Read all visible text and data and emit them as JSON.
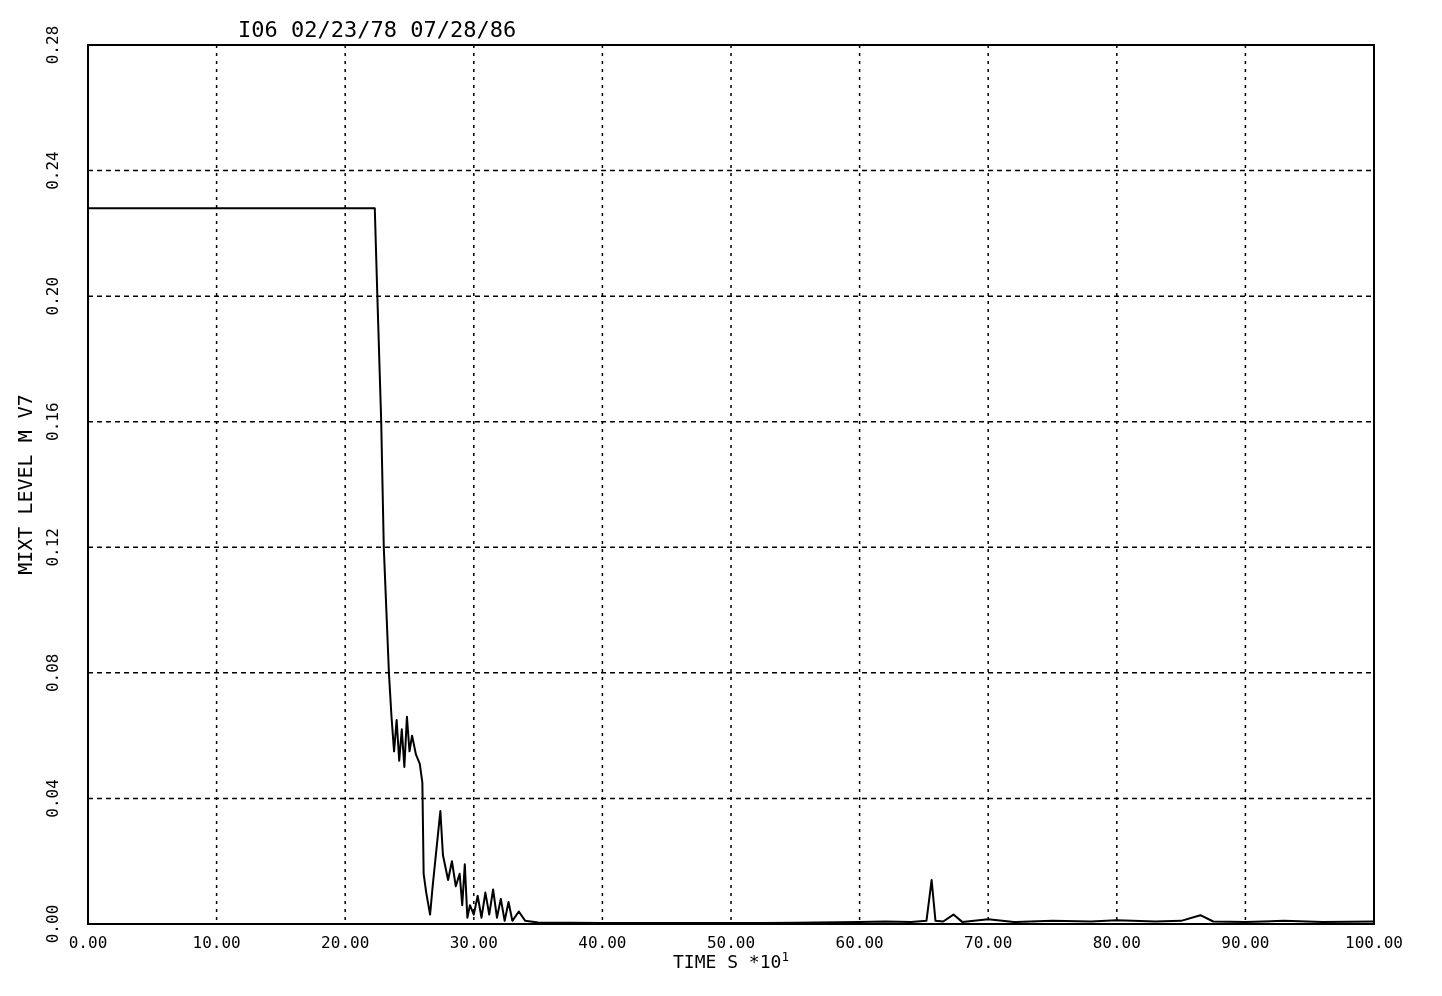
{
  "chart_data": {
    "type": "line",
    "title": "I06 02/23/78 07/28/86",
    "xlabel": "TIME  S  *10$^{1}$",
    "ylabel": "MIXT LEVEL  M  V7",
    "xlim": [
      0,
      100
    ],
    "ylim": [
      0,
      0.28
    ],
    "xticks": [
      {
        "value": 0,
        "label": "0.00"
      },
      {
        "value": 10,
        "label": "10.00"
      },
      {
        "value": 20,
        "label": "20.00"
      },
      {
        "value": 30,
        "label": "30.00"
      },
      {
        "value": 40,
        "label": "40.00"
      },
      {
        "value": 50,
        "label": "50.00"
      },
      {
        "value": 60,
        "label": "60.00"
      },
      {
        "value": 70,
        "label": "70.00"
      },
      {
        "value": 80,
        "label": "80.00"
      },
      {
        "value": 90,
        "label": "90.00"
      },
      {
        "value": 100,
        "label": "100.00"
      }
    ],
    "yticks": [
      {
        "value": 0,
        "label": "0.00"
      },
      {
        "value": 0.04,
        "label": "0.04"
      },
      {
        "value": 0.08,
        "label": "0.08"
      },
      {
        "value": 0.12,
        "label": "0.12"
      },
      {
        "value": 0.16,
        "label": "0.16"
      },
      {
        "value": 0.2,
        "label": "0.20"
      },
      {
        "value": 0.24,
        "label": "0.24"
      },
      {
        "value": 0.28,
        "label": "0.28"
      }
    ],
    "grid": true,
    "line_style": "solid",
    "marker": "none",
    "series": [
      {
        "color": "#000000",
        "x": [
          0,
          22.3,
          22.5,
          22.8,
          23.0,
          23.2,
          23.4,
          23.6,
          23.8,
          24.0,
          24.2,
          24.4,
          24.6,
          24.8,
          25.0,
          25.2,
          25.5,
          25.8,
          26.0,
          26.1,
          26.3,
          26.6,
          26.8,
          27.0,
          27.2,
          27.4,
          27.6,
          27.8,
          28.0,
          28.3,
          28.6,
          28.9,
          29.1,
          29.3,
          29.5,
          29.7,
          30.0,
          30.3,
          30.6,
          30.9,
          31.2,
          31.5,
          31.8,
          32.1,
          32.4,
          32.7,
          33.0,
          33.5,
          34.0,
          35.0,
          40,
          50,
          55,
          60,
          62,
          64,
          65.2,
          65.6,
          65.9,
          66.5,
          67.3,
          68,
          70,
          72,
          75,
          78,
          80,
          83,
          85,
          86.5,
          87.5,
          90,
          93,
          96,
          100
        ],
        "values": [
          0.228,
          0.228,
          0.2,
          0.16,
          0.12,
          0.1,
          0.08,
          0.066,
          0.055,
          0.065,
          0.052,
          0.062,
          0.05,
          0.066,
          0.055,
          0.06,
          0.054,
          0.051,
          0.045,
          0.016,
          0.01,
          0.003,
          0.012,
          0.02,
          0.028,
          0.036,
          0.022,
          0.018,
          0.014,
          0.02,
          0.012,
          0.016,
          0.006,
          0.019,
          0.002,
          0.006,
          0.003,
          0.009,
          0.002,
          0.01,
          0.003,
          0.011,
          0.002,
          0.008,
          0.001,
          0.007,
          0.001,
          0.004,
          0.001,
          0.0005,
          0.0003,
          0.0003,
          0.0004,
          0.0006,
          0.0008,
          0.0006,
          0.001,
          0.014,
          0.001,
          0.0008,
          0.003,
          0.0006,
          0.0015,
          0.0006,
          0.001,
          0.0008,
          0.0012,
          0.0008,
          0.001,
          0.0028,
          0.0008,
          0.0006,
          0.001,
          0.0006,
          0.0008
        ]
      }
    ]
  }
}
